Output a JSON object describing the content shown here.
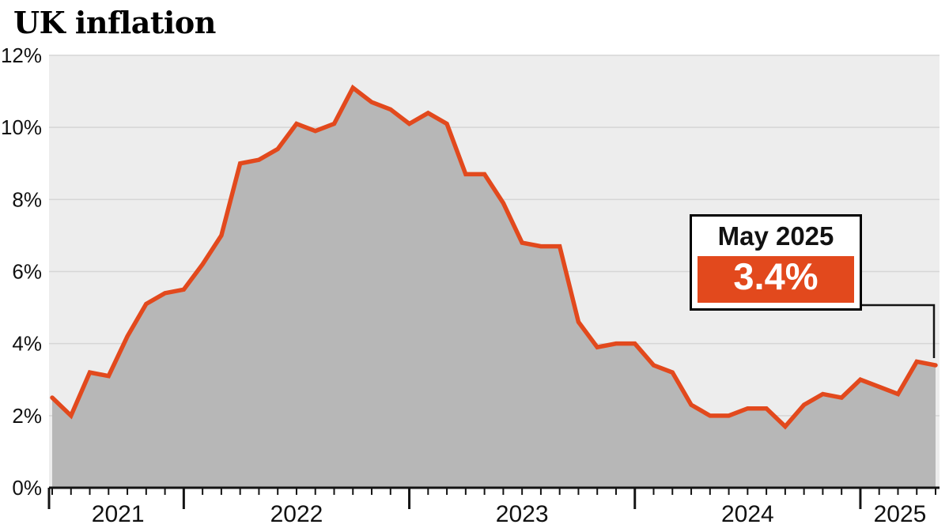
{
  "title": "UK inflation",
  "annotation": {
    "label": "May 2025",
    "value": "3.4%"
  },
  "colors": {
    "line": "#e2491d",
    "area": "#b7b7b7",
    "plot_bg": "#ededed",
    "grid": "#d6d6d6",
    "axis": "#141414",
    "text": "#111111",
    "annotation_value_bg": "#e2491d"
  },
  "chart_data": {
    "type": "area",
    "title": "UK inflation",
    "xlabel": "",
    "ylabel": "",
    "ylim": [
      0,
      12
    ],
    "yticks": [
      0,
      2,
      4,
      6,
      8,
      10,
      12
    ],
    "ytick_labels": [
      "0%",
      "2%",
      "4%",
      "6%",
      "8%",
      "10%",
      "12%"
    ],
    "year_labels": [
      "2021",
      "2022",
      "2023",
      "2024",
      "2025"
    ],
    "grid": true,
    "legend": false,
    "x": [
      "Jun 2021",
      "Jul 2021",
      "Aug 2021",
      "Sep 2021",
      "Oct 2021",
      "Nov 2021",
      "Dec 2021",
      "Jan 2022",
      "Feb 2022",
      "Mar 2022",
      "Apr 2022",
      "May 2022",
      "Jun 2022",
      "Jul 2022",
      "Aug 2022",
      "Sep 2022",
      "Oct 2022",
      "Nov 2022",
      "Dec 2022",
      "Jan 2023",
      "Feb 2023",
      "Mar 2023",
      "Apr 2023",
      "May 2023",
      "Jun 2023",
      "Jul 2023",
      "Aug 2023",
      "Sep 2023",
      "Oct 2023",
      "Nov 2023",
      "Dec 2023",
      "Jan 2024",
      "Feb 2024",
      "Mar 2024",
      "Apr 2024",
      "May 2024",
      "Jun 2024",
      "Jul 2024",
      "Aug 2024",
      "Sep 2024",
      "Oct 2024",
      "Nov 2024",
      "Dec 2024",
      "Jan 2025",
      "Feb 2025",
      "Mar 2025",
      "Apr 2025",
      "May 2025"
    ],
    "values": [
      2.5,
      2.0,
      3.2,
      3.1,
      4.2,
      5.1,
      5.4,
      5.5,
      6.2,
      7.0,
      9.0,
      9.1,
      9.4,
      10.1,
      9.9,
      10.1,
      11.1,
      10.7,
      10.5,
      10.1,
      10.4,
      10.1,
      8.7,
      8.7,
      7.9,
      6.8,
      6.7,
      6.7,
      4.6,
      3.9,
      4.0,
      4.0,
      3.4,
      3.2,
      2.3,
      2.0,
      2.0,
      2.2,
      2.2,
      1.7,
      2.3,
      2.6,
      2.5,
      3.0,
      2.8,
      2.6,
      3.5,
      3.4
    ],
    "annotation": {
      "label": "May 2025",
      "value": "3.4%",
      "value_pct": 3.4
    }
  }
}
